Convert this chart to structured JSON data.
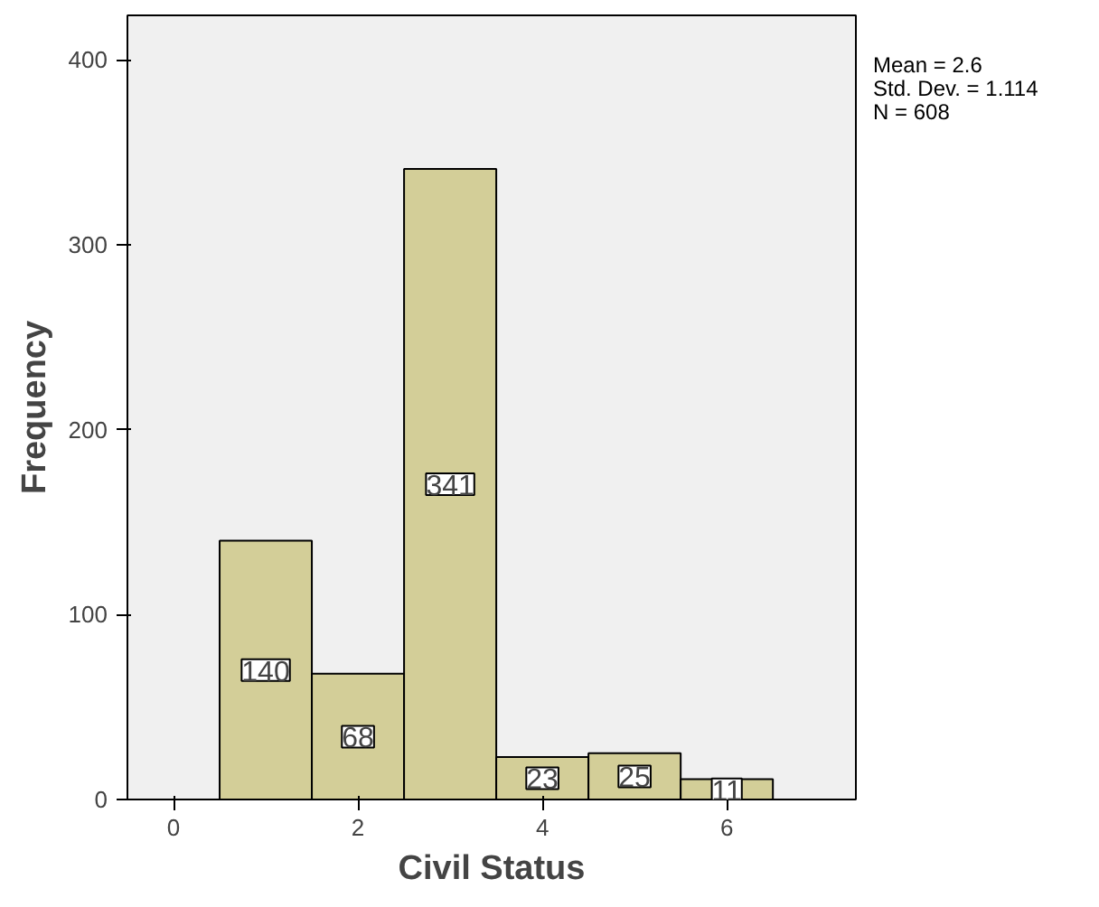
{
  "chart_data": {
    "type": "histogram",
    "xlabel": "Civil Status",
    "ylabel": "Frequency",
    "bins": [
      0.5,
      1.5,
      2.5,
      3.5,
      4.5,
      5.5,
      6.5
    ],
    "values": [
      140,
      68,
      341,
      23,
      25,
      11
    ],
    "color": "#d3ce98",
    "xlim": [
      -0.5,
      7.4
    ],
    "ylim": [
      0,
      424
    ],
    "xticks": [
      0,
      2,
      4,
      6
    ],
    "yticks": [
      0,
      100,
      200,
      300,
      400
    ],
    "grid": false,
    "data_labels": true,
    "annotations": [
      "Mean = 2.6",
      "Std. Dev. = 1.114",
      "N = 608"
    ]
  }
}
